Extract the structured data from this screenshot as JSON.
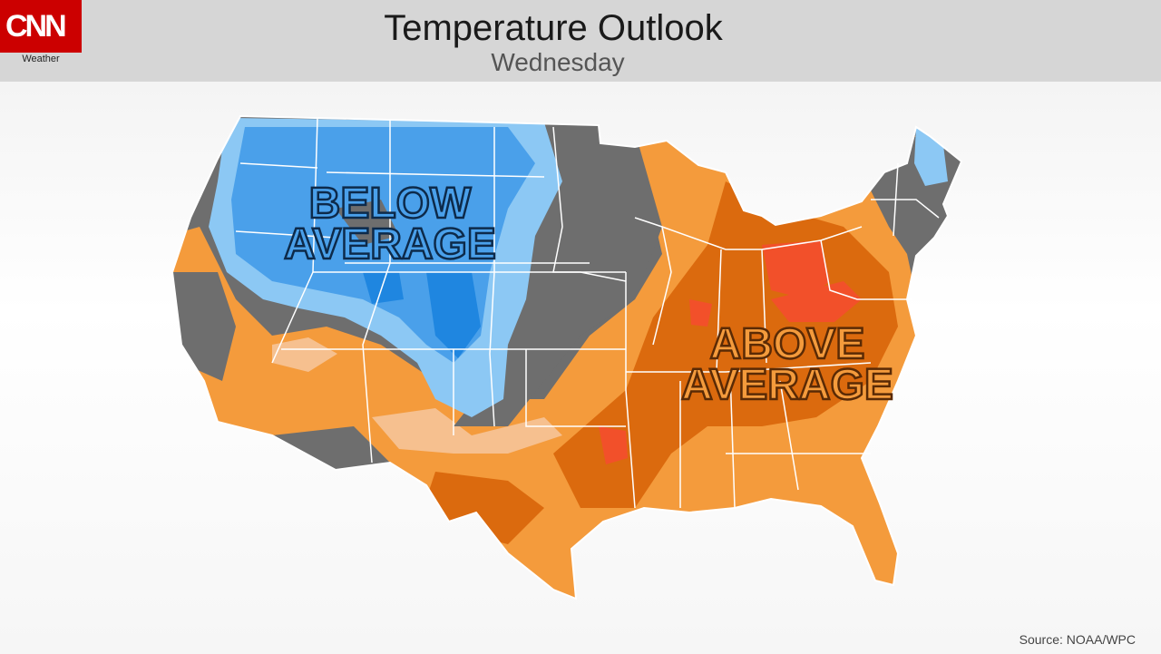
{
  "header": {
    "logo": "CNN",
    "logo_sub": "Weather",
    "title": "Temperature Outlook",
    "subtitle": "Wednesday"
  },
  "map": {
    "labels": {
      "below": [
        "BELOW",
        "AVERAGE"
      ],
      "above": [
        "ABOVE",
        "AVERAGE"
      ]
    },
    "colors": {
      "below_dark": "#1f86e0",
      "below_mid": "#4aa0ea",
      "below_light": "#8cc8f4",
      "neutral": "#6e6e6e",
      "above_light": "#f6c08f",
      "above_mid": "#f49b3c",
      "above_dark": "#db6a0e",
      "above_max": "#f2502a",
      "border": "#ffffff"
    }
  },
  "source": "Source: NOAA/WPC"
}
